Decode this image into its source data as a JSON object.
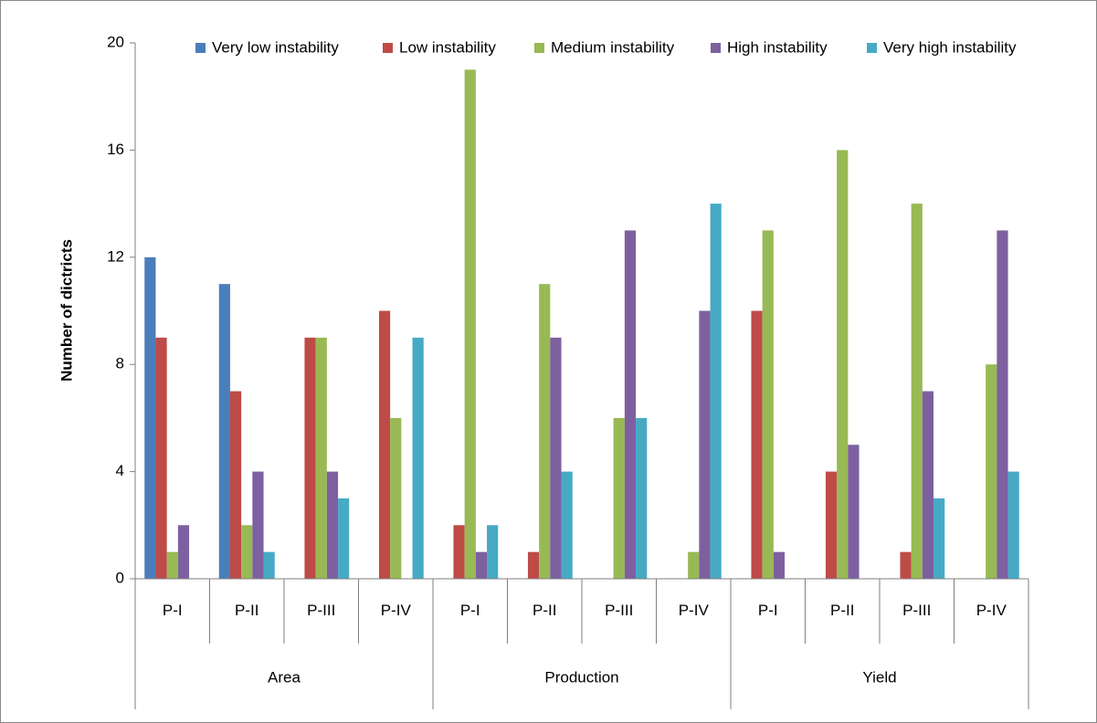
{
  "chart_data": {
    "type": "bar",
    "ylabel": "Number of dictricts",
    "ylim": [
      0,
      20
    ],
    "yticks": [
      "0",
      "4",
      "8",
      "12",
      "16",
      "20"
    ],
    "groups": [
      {
        "label": "Area",
        "periods": [
          "P-I",
          "P-II",
          "P-III",
          "P-IV"
        ]
      },
      {
        "label": "Production",
        "periods": [
          "P-I",
          "P-II",
          "P-III",
          "P-IV"
        ]
      },
      {
        "label": "Yield",
        "periods": [
          "P-I",
          "P-II",
          "P-III",
          "P-IV"
        ]
      }
    ],
    "legend_position": "top",
    "series": [
      {
        "name": "Very low instability",
        "color": "#4a7ebb",
        "values": [
          12,
          11,
          0,
          0,
          0,
          0,
          0,
          0,
          0,
          0,
          0,
          0
        ]
      },
      {
        "name": "Low instability",
        "color": "#be4b48",
        "values": [
          9,
          7,
          9,
          10,
          2,
          1,
          0,
          0,
          10,
          4,
          1,
          0
        ]
      },
      {
        "name": "Medium instability",
        "color": "#98b954",
        "values": [
          1,
          2,
          9,
          6,
          19,
          11,
          6,
          1,
          13,
          16,
          14,
          8
        ]
      },
      {
        "name": "High instability",
        "color": "#7d60a0",
        "values": [
          2,
          4,
          4,
          0,
          1,
          9,
          13,
          10,
          1,
          5,
          7,
          13
        ]
      },
      {
        "name": "Very high instability",
        "color": "#46aac5",
        "values": [
          0,
          1,
          3,
          9,
          2,
          4,
          6,
          14,
          0,
          0,
          3,
          4
        ]
      }
    ]
  }
}
